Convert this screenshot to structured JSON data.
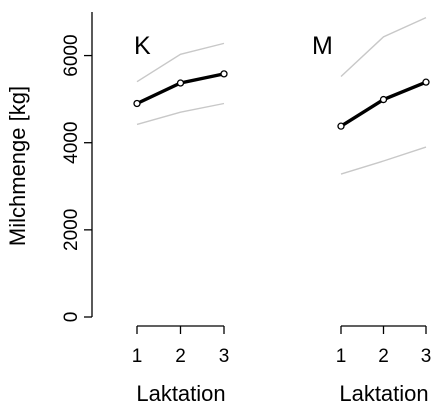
{
  "chart_data": {
    "type": "line",
    "ylabel": "Milchmenge [kg]",
    "ylim": [
      0,
      7000
    ],
    "y_ticks": [
      "0",
      "2000",
      "4000",
      "6000"
    ],
    "y_tick_values": [
      0,
      2000,
      4000,
      6000
    ],
    "xlabel": "Laktation",
    "x_ticks": [
      "1",
      "2",
      "3"
    ],
    "x_values": [
      1,
      2,
      3
    ],
    "colors": {
      "mean": "#000000",
      "bounds": "#c8c8c8"
    },
    "panels": [
      {
        "label": "K",
        "mean": [
          4900,
          5370,
          5580
        ],
        "upper": [
          5400,
          6030,
          6280
        ],
        "lower": [
          4420,
          4700,
          4900
        ]
      },
      {
        "label": "M",
        "mean": [
          4380,
          4990,
          5390
        ],
        "upper": [
          5520,
          6430,
          6870
        ],
        "lower": [
          3280,
          3580,
          3900
        ]
      }
    ]
  }
}
